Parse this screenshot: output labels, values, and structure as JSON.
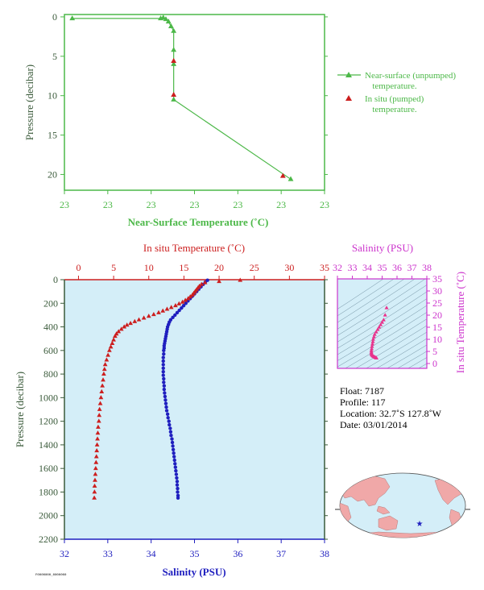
{
  "colors": {
    "green": "#4cb848",
    "red": "#cc1f1f",
    "blue": "#1f1fbf",
    "magenta": "#cc33cc",
    "pink": "#e8338c",
    "panel_bg": "#d4eef8",
    "axis_dark": "#3a5a3a"
  },
  "chart_data": [
    {
      "type": "line",
      "id": "near_surface",
      "xlabel": "Near-Surface Temperature (˚C)",
      "ylabel": "Pressure (decibar)",
      "x_tick_labels": [
        "23",
        "23",
        "23",
        "23",
        "23",
        "23",
        "23"
      ],
      "y_ticks": [
        0,
        5,
        10,
        15,
        20
      ],
      "ylim": [
        -0.3,
        22
      ],
      "x_units": "fraction of axis width",
      "legend_position": "right",
      "series": [
        {
          "name": "Near-surface (unpumped) temperature.",
          "legend_line1": "Near-surface (unpumped)",
          "legend_line2": "temperature.",
          "color": "#4cb848",
          "marker": "triangle",
          "points": [
            [
              0.03,
              0.2
            ],
            [
              0.37,
              0.2
            ],
            [
              0.38,
              0.1
            ],
            [
              0.39,
              0.3
            ],
            [
              0.4,
              0.6
            ],
            [
              0.41,
              1.2
            ],
            [
              0.42,
              1.8
            ],
            [
              0.42,
              4.2
            ],
            [
              0.42,
              6.0
            ],
            [
              0.42,
              10.5
            ],
            [
              0.87,
              20.6
            ]
          ]
        },
        {
          "name": "In situ (pumped) temperature.",
          "legend_line1": "In situ (pumped)",
          "legend_line2": "temperature.",
          "color": "#cc1f1f",
          "marker": "triangle",
          "points": [
            [
              0.42,
              5.6
            ],
            [
              0.42,
              9.9
            ],
            [
              0.84,
              20.2
            ]
          ]
        }
      ]
    },
    {
      "type": "scatter",
      "id": "profile",
      "ylabel": "Pressure (decibar)",
      "top_axis_label": "In situ Temperature (˚C)",
      "bottom_axis_label": "Salinity (PSU)",
      "top_ticks": [
        0,
        5,
        10,
        15,
        20,
        25,
        30,
        35
      ],
      "bottom_ticks": [
        32,
        33,
        34,
        35,
        36,
        37,
        38
      ],
      "y_ticks": [
        0,
        200,
        400,
        600,
        800,
        1000,
        1200,
        1400,
        1600,
        1800,
        2000,
        2200
      ],
      "temp_range": [
        -2,
        35
      ],
      "sal_range": [
        32,
        38
      ],
      "ylim": [
        0,
        2200
      ],
      "temperature": [
        [
          23.0,
          5
        ],
        [
          20.0,
          15
        ],
        [
          18.0,
          25
        ],
        [
          17.5,
          40
        ],
        [
          17.2,
          55
        ],
        [
          17.0,
          70
        ],
        [
          16.8,
          85
        ],
        [
          16.6,
          100
        ],
        [
          16.4,
          115
        ],
        [
          16.2,
          130
        ],
        [
          15.9,
          145
        ],
        [
          15.6,
          160
        ],
        [
          15.2,
          175
        ],
        [
          14.8,
          190
        ],
        [
          14.3,
          205
        ],
        [
          13.8,
          220
        ],
        [
          13.2,
          235
        ],
        [
          12.6,
          250
        ],
        [
          12.0,
          265
        ],
        [
          11.4,
          280
        ],
        [
          10.7,
          295
        ],
        [
          10.0,
          310
        ],
        [
          9.3,
          325
        ],
        [
          8.6,
          340
        ],
        [
          8.0,
          355
        ],
        [
          7.4,
          370
        ],
        [
          6.9,
          385
        ],
        [
          6.5,
          400
        ],
        [
          6.1,
          420
        ],
        [
          5.7,
          440
        ],
        [
          5.4,
          460
        ],
        [
          5.2,
          480
        ],
        [
          5.0,
          510
        ],
        [
          4.8,
          540
        ],
        [
          4.6,
          570
        ],
        [
          4.4,
          600
        ],
        [
          4.2,
          640
        ],
        [
          4.0,
          680
        ],
        [
          3.8,
          720
        ],
        [
          3.7,
          760
        ],
        [
          3.6,
          800
        ],
        [
          3.5,
          850
        ],
        [
          3.4,
          900
        ],
        [
          3.3,
          950
        ],
        [
          3.2,
          1000
        ],
        [
          3.1,
          1050
        ],
        [
          3.0,
          1100
        ],
        [
          2.95,
          1150
        ],
        [
          2.9,
          1200
        ],
        [
          2.8,
          1250
        ],
        [
          2.75,
          1300
        ],
        [
          2.7,
          1350
        ],
        [
          2.65,
          1400
        ],
        [
          2.6,
          1450
        ],
        [
          2.55,
          1500
        ],
        [
          2.5,
          1550
        ],
        [
          2.45,
          1600
        ],
        [
          2.4,
          1650
        ],
        [
          2.35,
          1700
        ],
        [
          2.3,
          1750
        ],
        [
          2.28,
          1800
        ],
        [
          2.25,
          1850
        ]
      ],
      "salinity": [
        [
          35.3,
          5
        ],
        [
          35.25,
          20
        ],
        [
          35.2,
          40
        ],
        [
          35.15,
          60
        ],
        [
          35.1,
          80
        ],
        [
          35.05,
          100
        ],
        [
          35.0,
          120
        ],
        [
          34.95,
          140
        ],
        [
          34.9,
          160
        ],
        [
          34.85,
          180
        ],
        [
          34.8,
          200
        ],
        [
          34.75,
          220
        ],
        [
          34.7,
          240
        ],
        [
          34.65,
          260
        ],
        [
          34.6,
          280
        ],
        [
          34.55,
          300
        ],
        [
          34.5,
          320
        ],
        [
          34.45,
          340
        ],
        [
          34.42,
          360
        ],
        [
          34.4,
          380
        ],
        [
          34.38,
          400
        ],
        [
          34.37,
          420
        ],
        [
          34.36,
          440
        ],
        [
          34.35,
          460
        ],
        [
          34.34,
          480
        ],
        [
          34.33,
          500
        ],
        [
          34.32,
          520
        ],
        [
          34.31,
          540
        ],
        [
          34.3,
          560
        ],
        [
          34.3,
          580
        ],
        [
          34.29,
          600
        ],
        [
          34.29,
          630
        ],
        [
          34.28,
          660
        ],
        [
          34.28,
          690
        ],
        [
          34.28,
          720
        ],
        [
          34.28,
          750
        ],
        [
          34.28,
          780
        ],
        [
          34.28,
          810
        ],
        [
          34.29,
          840
        ],
        [
          34.29,
          870
        ],
        [
          34.3,
          900
        ],
        [
          34.3,
          930
        ],
        [
          34.31,
          960
        ],
        [
          34.32,
          990
        ],
        [
          34.33,
          1020
        ],
        [
          34.34,
          1050
        ],
        [
          34.35,
          1080
        ],
        [
          34.36,
          1110
        ],
        [
          34.38,
          1140
        ],
        [
          34.39,
          1170
        ],
        [
          34.41,
          1200
        ],
        [
          34.42,
          1230
        ],
        [
          34.44,
          1260
        ],
        [
          34.45,
          1290
        ],
        [
          34.46,
          1320
        ],
        [
          34.48,
          1350
        ],
        [
          34.49,
          1380
        ],
        [
          34.5,
          1410
        ],
        [
          34.51,
          1440
        ],
        [
          34.52,
          1470
        ],
        [
          34.53,
          1500
        ],
        [
          34.54,
          1530
        ],
        [
          34.55,
          1560
        ],
        [
          34.56,
          1590
        ],
        [
          34.57,
          1620
        ],
        [
          34.58,
          1650
        ],
        [
          34.59,
          1680
        ],
        [
          34.6,
          1710
        ],
        [
          34.6,
          1740
        ],
        [
          34.61,
          1770
        ],
        [
          34.61,
          1800
        ],
        [
          34.62,
          1830
        ],
        [
          34.62,
          1850
        ]
      ]
    },
    {
      "type": "scatter",
      "id": "ts_diagram",
      "top_axis_label": "Salinity (PSU)",
      "right_axis_label": "In situ Temperature (˚C)",
      "x_ticks": [
        32,
        33,
        34,
        35,
        36,
        37,
        38
      ],
      "y_ticks": [
        0,
        5,
        10,
        15,
        20,
        25,
        30,
        35
      ],
      "xlim": [
        32,
        38
      ],
      "ylim": [
        -2,
        35
      ],
      "points": [
        [
          35.3,
          23.0
        ],
        [
          35.2,
          20.0
        ],
        [
          35.1,
          18.0
        ],
        [
          35.0,
          17.0
        ],
        [
          34.9,
          16.0
        ],
        [
          34.8,
          15.0
        ],
        [
          34.7,
          14.0
        ],
        [
          34.6,
          13.0
        ],
        [
          34.5,
          12.0
        ],
        [
          34.45,
          11.0
        ],
        [
          34.4,
          10.0
        ],
        [
          34.38,
          9.0
        ],
        [
          34.35,
          8.0
        ],
        [
          34.32,
          7.0
        ],
        [
          34.3,
          6.0
        ],
        [
          34.28,
          5.2
        ],
        [
          34.28,
          4.5
        ],
        [
          34.29,
          4.0
        ],
        [
          34.3,
          3.6
        ],
        [
          34.35,
          3.2
        ],
        [
          34.4,
          3.0
        ],
        [
          34.45,
          2.8
        ],
        [
          34.5,
          2.6
        ],
        [
          34.55,
          2.45
        ],
        [
          34.6,
          2.3
        ],
        [
          34.62,
          2.25
        ]
      ]
    }
  ],
  "float_info": {
    "float": "Float:  7187",
    "profile": "Profile:  117",
    "location": "Location:  32.7˚S  127.8˚W",
    "date": "Date:  03/01/2014"
  },
  "footer_code": "F0000000_0000000"
}
